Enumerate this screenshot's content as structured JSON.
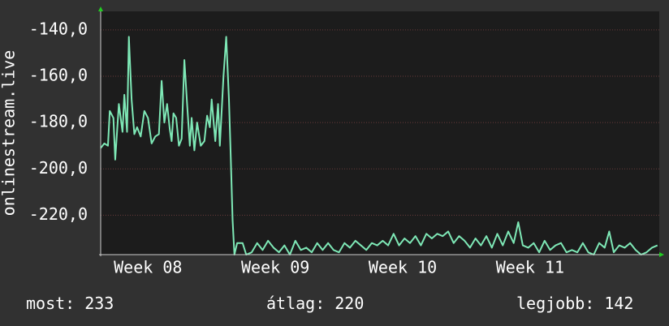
{
  "chart_data": {
    "type": "line",
    "y_label": "onlinestream.live",
    "x": [
      0,
      0.2,
      0.4,
      0.5,
      0.7,
      0.8,
      1.0,
      1.2,
      1.3,
      1.45,
      1.55,
      1.7,
      1.85,
      2.0,
      2.2,
      2.4,
      2.6,
      2.8,
      3.0,
      3.2,
      3.35,
      3.5,
      3.65,
      3.8,
      3.9,
      4.0,
      4.15,
      4.3,
      4.45,
      4.6,
      4.75,
      4.9,
      5.0,
      5.15,
      5.3,
      5.5,
      5.7,
      5.85,
      6.0,
      6.1,
      6.3,
      6.45,
      6.55,
      6.75,
      6.9,
      7.05,
      7.15,
      7.25,
      7.35,
      7.5,
      7.8,
      8.0,
      8.3,
      8.6,
      8.9,
      9.2,
      9.5,
      9.8,
      10.1,
      10.4,
      10.7,
      11.0,
      11.3,
      11.6,
      11.9,
      12.2,
      12.5,
      12.8,
      13.1,
      13.4,
      13.7,
      14.0,
      14.3,
      14.6,
      14.9,
      15.2,
      15.5,
      15.8,
      16.1,
      16.4,
      16.7,
      17.0,
      17.3,
      17.6,
      17.9,
      18.2,
      18.5,
      18.8,
      19.1,
      19.4,
      19.7,
      20.0,
      20.3,
      20.6,
      20.9,
      21.2,
      21.5,
      21.8,
      22.1,
      22.4,
      22.7,
      22.95,
      23.2,
      23.5,
      23.8,
      24.1,
      24.4,
      24.7,
      25.0,
      25.3,
      25.6,
      25.9,
      26.2,
      26.5,
      26.8,
      27.1,
      27.4,
      27.7,
      27.95,
      28.2,
      28.5,
      28.8,
      29.1,
      29.4,
      29.7,
      30.0,
      30.3,
      30.6
    ],
    "series": [
      {
        "color": "#7ee8b6",
        "values": [
          -191,
          -189,
          -190,
          -175,
          -178,
          -196,
          -172,
          -184,
          -168,
          -184,
          -143,
          -170,
          -185,
          -182,
          -186,
          -175,
          -178,
          -189,
          -186,
          -185,
          -162,
          -180,
          -172,
          -183,
          -188,
          -176,
          -178,
          -190,
          -187,
          -153,
          -172,
          -190,
          -178,
          -192,
          -180,
          -190,
          -188,
          -177,
          -182,
          -170,
          -188,
          -172,
          -190,
          -160,
          -143,
          -170,
          -195,
          -222,
          -237,
          -232,
          -232,
          -237,
          -236,
          -232,
          -235,
          -231,
          -234,
          -236,
          -233,
          -237,
          -231,
          -235,
          -234,
          -236,
          -232,
          -235,
          -232,
          -235,
          -236,
          -232,
          -234,
          -231,
          -233,
          -235,
          -232,
          -233,
          -231,
          -233,
          -228,
          -233,
          -230,
          -232,
          -229,
          -233,
          -228,
          -230,
          -228,
          -229,
          -227,
          -232,
          -229,
          -231,
          -234,
          -230,
          -233,
          -229,
          -234,
          -228,
          -233,
          -227,
          -232,
          -223,
          -233,
          -234,
          -232,
          -236,
          -231,
          -235,
          -233,
          -232,
          -236,
          -235,
          -236,
          -232,
          -236,
          -237,
          -232,
          -234,
          -227,
          -236,
          -233,
          -234,
          -232,
          -235,
          -237,
          -236,
          -234,
          -233
        ]
      }
    ],
    "xlim": [
      0,
      30.7
    ],
    "xticks": [
      {
        "value": 2.6,
        "label": "Week 08"
      },
      {
        "value": 9.6,
        "label": "Week 09"
      },
      {
        "value": 16.6,
        "label": "Week 10"
      },
      {
        "value": 23.6,
        "label": "Week 11"
      }
    ],
    "ylim": [
      -237,
      -132
    ],
    "yticks": [
      {
        "value": -140,
        "label": "-140,0"
      },
      {
        "value": -160,
        "label": "-160,0"
      },
      {
        "value": -180,
        "label": "-180,0"
      },
      {
        "value": -200,
        "label": "-200,0"
      },
      {
        "value": -220,
        "label": "-220,0"
      }
    ],
    "grid": true,
    "stats": [
      {
        "label": "most:",
        "value": 233
      },
      {
        "label": "átlag:",
        "value": 220
      },
      {
        "label": "legjobb:",
        "value": 142
      }
    ]
  }
}
